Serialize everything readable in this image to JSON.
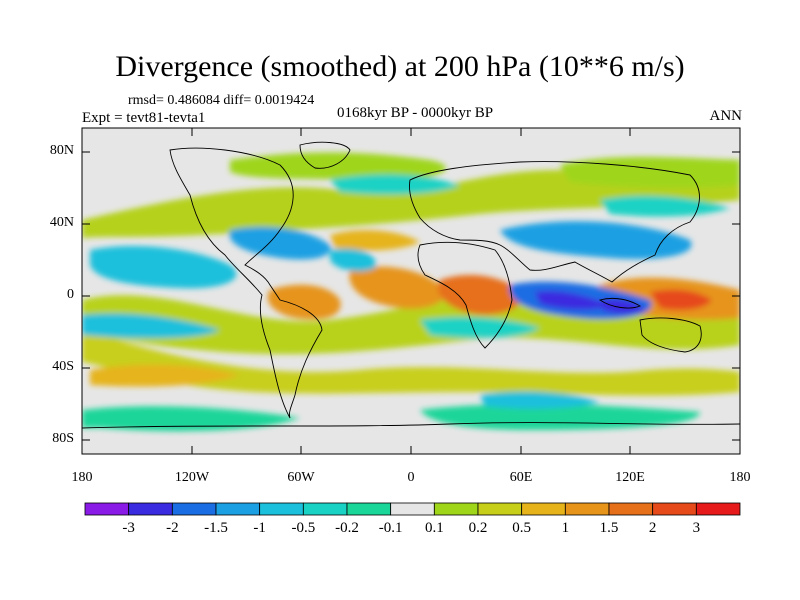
{
  "title": "Divergence (smoothed) at 200 hPa (10**6 m/s)",
  "stats": "rmsd= 0.486084 diff= 0.0019424",
  "experiment": "Expt = tevt81-tevta1",
  "period": "0168kyr BP - 0000kyr BP",
  "season": "ANN",
  "axes": {
    "y_ticks": [
      "80N",
      "40N",
      "0",
      "40S",
      "80S"
    ],
    "x_ticks": [
      "180",
      "120W",
      "60W",
      "0",
      "60E",
      "120E",
      "180"
    ]
  },
  "colorbar": {
    "labels": [
      "-3",
      "-2",
      "-1.5",
      "-1",
      "-0.5",
      "-0.2",
      "-0.1",
      "0.1",
      "0.2",
      "0.5",
      "1",
      "1.5",
      "2",
      "3"
    ],
    "colors": [
      "#8a1ae6",
      "#3a2be0",
      "#1a6de3",
      "#1aa0e3",
      "#1ac0dc",
      "#1ad2c4",
      "#1ad699",
      "#e6e6e6",
      "#9fd61a",
      "#c8cf1a",
      "#e6b41a",
      "#e6941a",
      "#e6701a",
      "#e64a1a",
      "#e61a1a"
    ]
  }
}
